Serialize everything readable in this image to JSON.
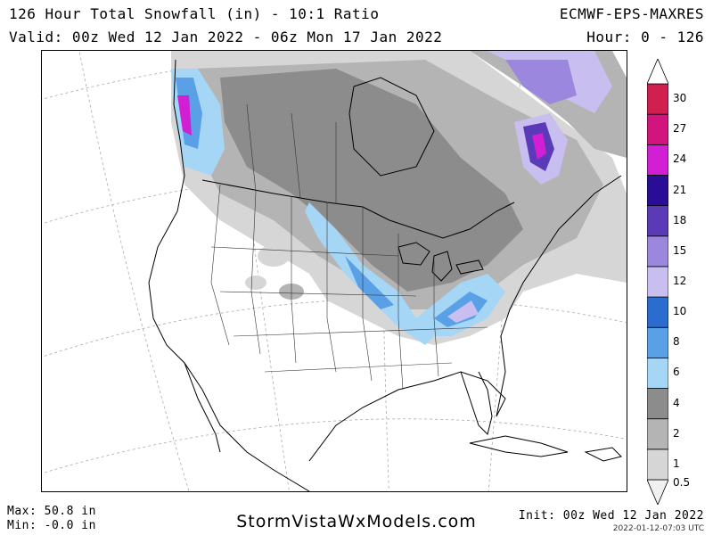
{
  "header": {
    "title": "126 Hour Total Snowfall (in) - 10:1 Ratio",
    "model": "ECMWF-EPS-MAXRES",
    "valid": "Valid: 00z Wed 12 Jan 2022 - 06z Mon 17 Jan 2022",
    "hours": "Hour: 0 - 126"
  },
  "legend": {
    "levels": [
      {
        "label": "0.5",
        "color": "#f0f0f0"
      },
      {
        "label": "1",
        "color": "#d6d6d6"
      },
      {
        "label": "2",
        "color": "#b4b4b4"
      },
      {
        "label": "4",
        "color": "#8c8c8c"
      },
      {
        "label": "6",
        "color": "#a6d6f5"
      },
      {
        "label": "8",
        "color": "#5aa0e6"
      },
      {
        "label": "10",
        "color": "#2a6ccf"
      },
      {
        "label": "12",
        "color": "#c8bff0"
      },
      {
        "label": "15",
        "color": "#9c87de"
      },
      {
        "label": "18",
        "color": "#5b3ab8"
      },
      {
        "label": "21",
        "color": "#2a0d96"
      },
      {
        "label": "24",
        "color": "#d21fd4"
      },
      {
        "label": "27",
        "color": "#d4147e"
      },
      {
        "label": "30",
        "color": "#d12050"
      },
      {
        "label": "",
        "color": "#c81a1a"
      }
    ]
  },
  "footer": {
    "max": "Max: 50.8 in",
    "min": "Min: -0.0 in",
    "site": "StormVistaWxModels.com",
    "init": "Init: 00z Wed 12 Jan 2022",
    "stamp": "2022-01-12-07:03 UTC"
  }
}
